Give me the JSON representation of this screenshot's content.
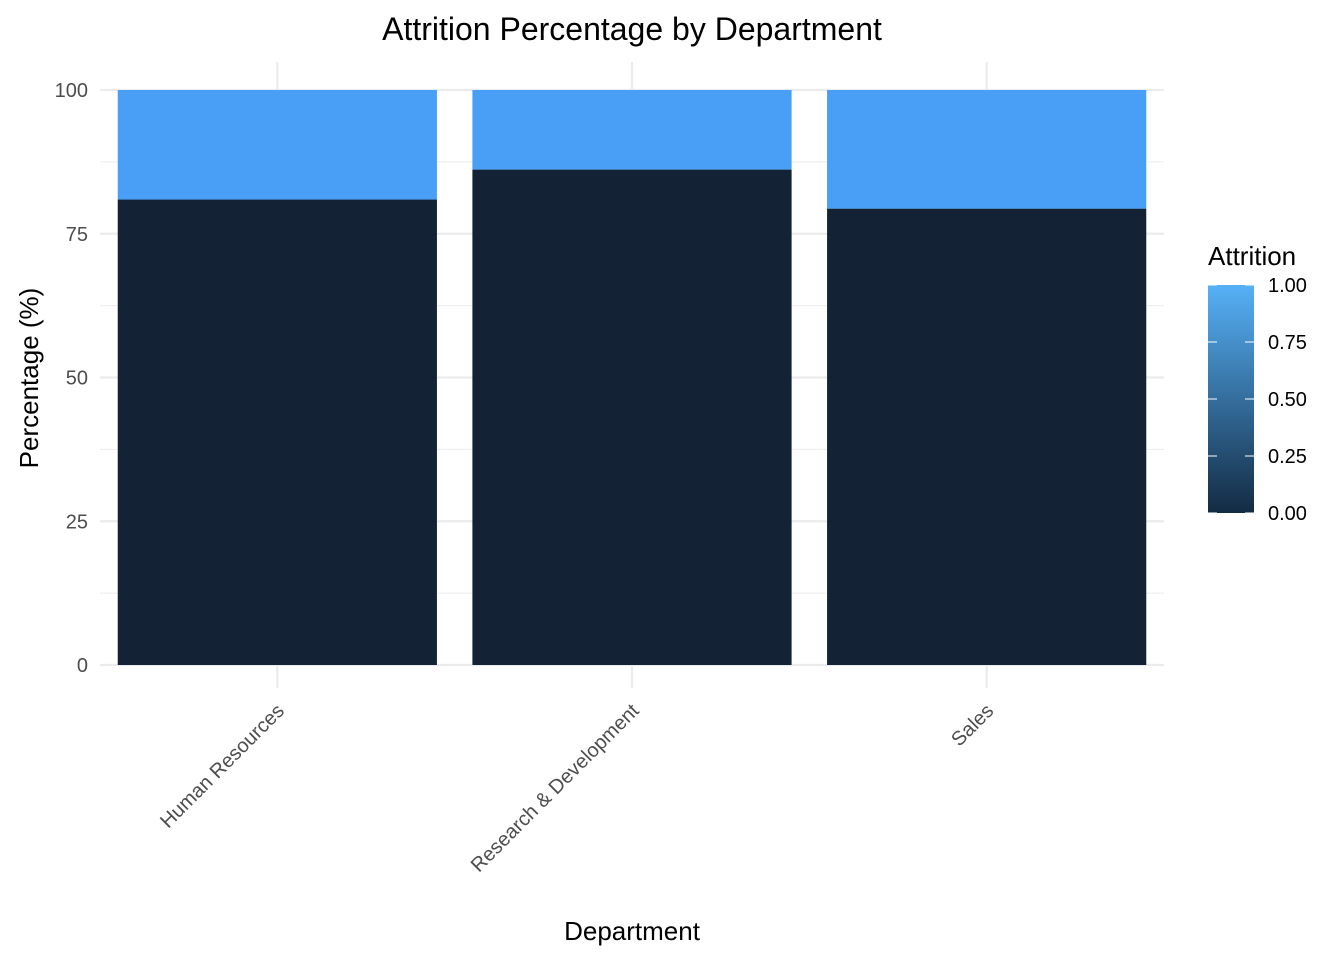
{
  "chart_data": {
    "type": "bar",
    "stacked": true,
    "title": "Attrition Percentage by Department",
    "xlabel": "Department",
    "ylabel": "Percentage (%)",
    "categories": [
      "Human Resources",
      "Research & Development",
      "Sales"
    ],
    "series": [
      {
        "attrition_value": 0,
        "values": [
          80.95,
          86.16,
          79.37
        ]
      },
      {
        "attrition_value": 1,
        "values": [
          19.05,
          13.84,
          20.63
        ]
      }
    ],
    "ylim": [
      0,
      100
    ],
    "yticks": [
      0,
      25,
      50,
      75,
      100
    ],
    "ytick_labels": [
      "0",
      "25",
      "50",
      "75",
      "100"
    ],
    "grid": true,
    "legend": {
      "title": "Attrition",
      "placement": "right",
      "type": "colorbar",
      "range": [
        0,
        1
      ],
      "ticks": [
        0,
        0.25,
        0.5,
        0.75,
        1
      ],
      "tick_labels": [
        "0.00",
        "0.25",
        "0.50",
        "0.75",
        "1.00"
      ],
      "color_low": "#132B43",
      "color_high": "#56B1F7"
    },
    "colors": {
      "bar_low": "#132335",
      "bar_high": "#489FF5",
      "grid": "#ebebeb"
    }
  }
}
